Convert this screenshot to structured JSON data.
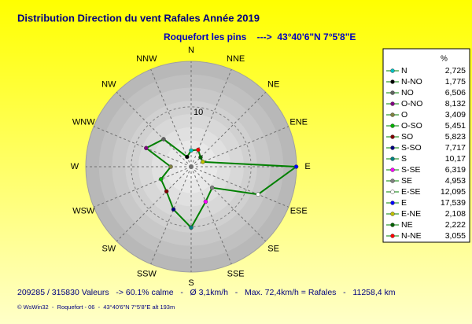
{
  "chart_data": {
    "type": "windrose",
    "title": "Distribution Direction du vent Rafales  Année 2019",
    "subtitle": "Roquefort les pins    --->  43°40'6\"N 7°5'8\"E",
    "direction_labels": [
      "N",
      "NNE",
      "NE",
      "ENE",
      "E",
      "ESE",
      "SE",
      "SSE",
      "S",
      "SSW",
      "SW",
      "WSW",
      "W",
      "WNW",
      "NW",
      "NNW"
    ],
    "legend_title": "%",
    "categories": [
      "N",
      "N-NO",
      "NO",
      "O-NO",
      "O",
      "O-SO",
      "SO",
      "S-SO",
      "S",
      "S-SE",
      "SE",
      "E-SE",
      "E",
      "E-NE",
      "NE",
      "N-NE"
    ],
    "values": [
      2.725,
      1.775,
      6.506,
      8.132,
      3.409,
      5.451,
      5.823,
      7.717,
      10.17,
      6.319,
      4.953,
      12.095,
      17.539,
      2.108,
      2.222,
      3.055
    ],
    "value_labels": [
      "2,725",
      "1,775",
      "6,506",
      "8,132",
      "3,409",
      "5,451",
      "5,823",
      "7,717",
      "10,17",
      "6,319",
      "4,953",
      "12,095",
      "17,539",
      "2,108",
      "2,222",
      "3,055"
    ],
    "colors": [
      "#00c0c0",
      "#000000",
      "#606060",
      "#800080",
      "#808040",
      "#00b000",
      "#800000",
      "#000080",
      "#008080",
      "#ff00ff",
      "#808080",
      "#ffffff",
      "#0000ff",
      "#c0c000",
      "#006000",
      "#ff0000"
    ],
    "line_color": "#008000",
    "rlim": [
      0,
      17.6
    ],
    "rticks": [
      10
    ]
  },
  "footer": "209285 / 315830 Valeurs   -> 60.1% calme   -   Ø 3,1km/h   -   Max. 72,4km/h = Rafales   -   11258,4 km",
  "credit": "© WsWin32  -  Roquefort - 06  -  43°40'6\"N 7°5'8\"E alt 193m"
}
